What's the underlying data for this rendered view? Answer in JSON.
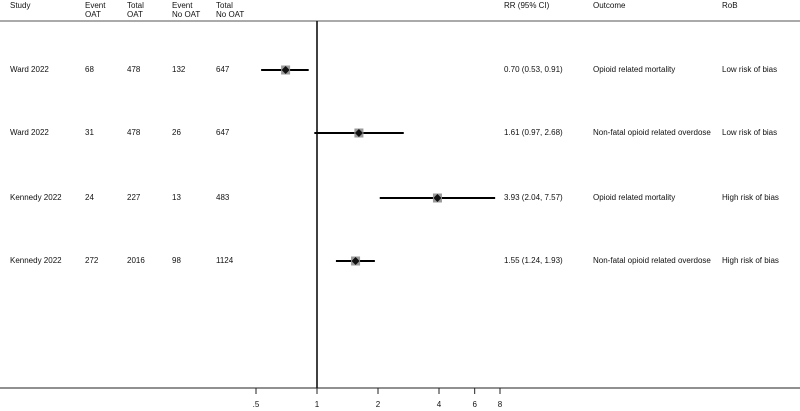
{
  "chart_data": {
    "type": "forest",
    "x_scale": "log",
    "x_ticks": [
      {
        "value": 0.5,
        "label": ".5"
      },
      {
        "value": 1,
        "label": "1"
      },
      {
        "value": 2,
        "label": "2"
      },
      {
        "value": 4,
        "label": "4"
      },
      {
        "value": 6,
        "label": "6"
      },
      {
        "value": 8,
        "label": "8"
      }
    ],
    "reference_line": 1,
    "columns": {
      "study": "Study",
      "event_oat": "Event\nOAT",
      "total_oat": "Total\nOAT",
      "event_no_oat": "Event\nNo OAT",
      "total_no_oat": "Total\nNo OAT",
      "rr": "RR (95% CI)",
      "outcome": "Outcome",
      "rob": "RoB"
    },
    "rows": [
      {
        "study": "Ward 2022",
        "event_oat": "68",
        "total_oat": "478",
        "event_no_oat": "132",
        "total_no_oat": "647",
        "rr": 0.7,
        "lo": 0.53,
        "hi": 0.91,
        "rr_text": "0.70 (0.53, 0.91)",
        "outcome": "Opioid related mortality",
        "rob": "Low risk of bias"
      },
      {
        "study": "Ward 2022",
        "event_oat": "31",
        "total_oat": "478",
        "event_no_oat": "26",
        "total_no_oat": "647",
        "rr": 1.61,
        "lo": 0.97,
        "hi": 2.68,
        "rr_text": "1.61 (0.97, 2.68)",
        "outcome": "Non-fatal opioid related overdose",
        "rob": "Low risk of bias"
      },
      {
        "study": "Kennedy 2022",
        "event_oat": "24",
        "total_oat": "227",
        "event_no_oat": "13",
        "total_no_oat": "483",
        "rr": 3.93,
        "lo": 2.04,
        "hi": 7.57,
        "rr_text": "3.93 (2.04, 7.57)",
        "outcome": "Opioid related mortality",
        "rob": "High risk of bias"
      },
      {
        "study": "Kennedy 2022",
        "event_oat": "272",
        "total_oat": "2016",
        "event_no_oat": "98",
        "total_no_oat": "1124",
        "rr": 1.55,
        "lo": 1.24,
        "hi": 1.93,
        "rr_text": "1.55 (1.24, 1.93)",
        "outcome": "Non-fatal opioid related overdose",
        "rob": "High risk of bias"
      }
    ]
  }
}
